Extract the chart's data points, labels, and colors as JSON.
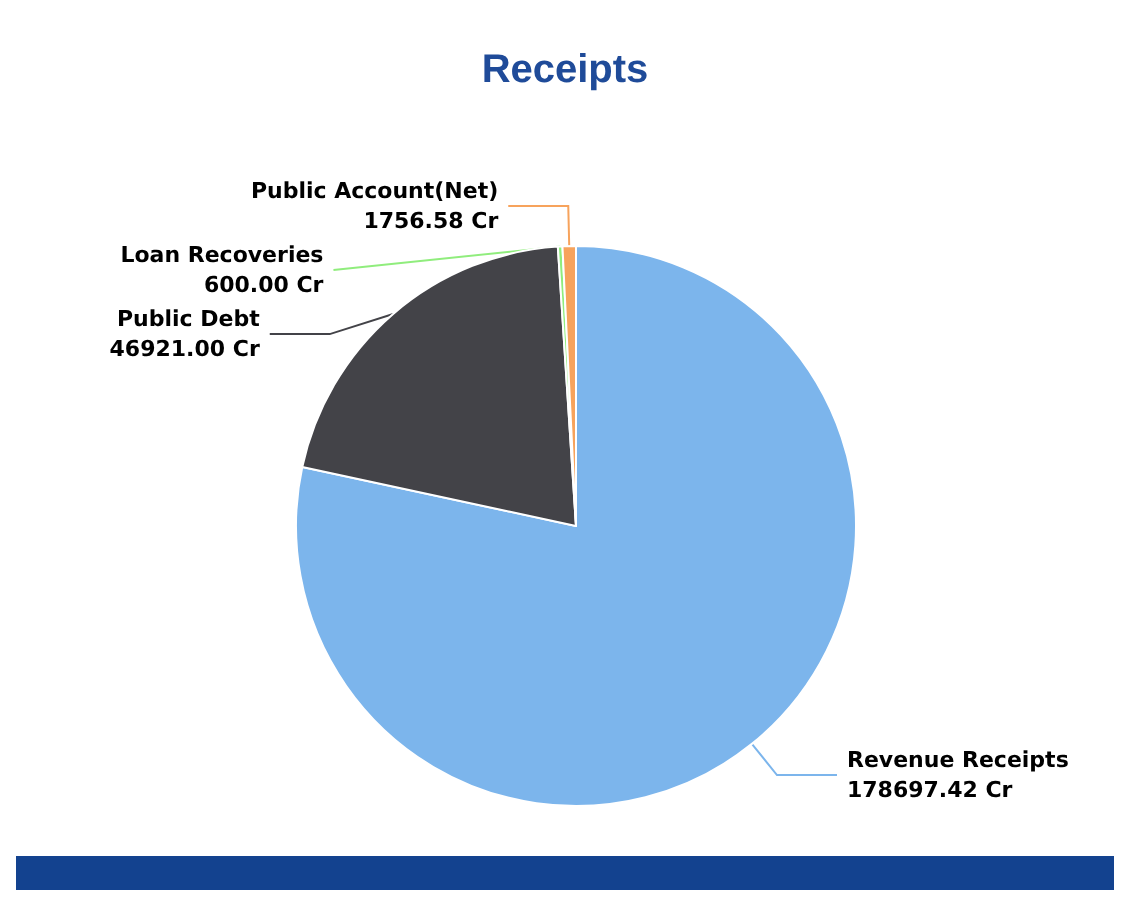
{
  "chart_data": {
    "type": "pie",
    "title": "Receipts",
    "categories": [
      "Revenue Receipts",
      "Public Debt",
      "Loan Recoveries",
      "Public Account(Net)"
    ],
    "values": [
      178697.42,
      46921.0,
      600.0,
      1756.58
    ],
    "value_labels": [
      "178697.42 Cr",
      "46921.00 Cr",
      "600.00 Cr",
      "1756.58 Cr"
    ],
    "colors": [
      "#7cb5ec",
      "#434348",
      "#90ed7d",
      "#f7a35c"
    ],
    "legend": false
  }
}
